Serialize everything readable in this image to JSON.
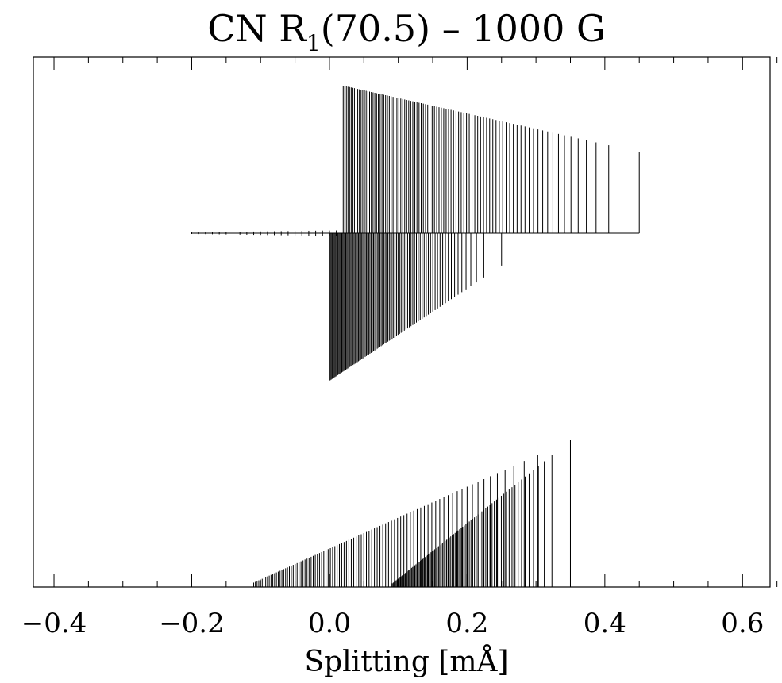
{
  "chart_data": {
    "type": "line",
    "title": {
      "main": "CN R",
      "subscript": "1",
      "rest": "(70.5)  –  1000 G"
    },
    "xlabel": "Splitting [mÅ]",
    "ylabel": "",
    "xlim": [
      -0.43,
      0.64
    ],
    "x_ticks": [
      "−0.4",
      "−0.2",
      "0.0",
      "0.2",
      "0.4",
      "0.6"
    ],
    "x_tick_values": [
      -0.4,
      -0.2,
      0.0,
      0.2,
      0.4,
      0.6
    ],
    "grid": false,
    "series": [
      {
        "component": "sigma",
        "x_start": -0.2,
        "x_end": 0.45,
        "upper_x_start": 0.02,
        "upper_x_end": 0.45,
        "lower_x_start": 0.0,
        "lower_x_end": 0.25,
        "peak_strength": 1.0,
        "count": 95
      },
      {
        "component": "pi",
        "x_start": -0.11,
        "x_end": 0.35,
        "peak_strength": 1.0,
        "count": 95
      }
    ]
  }
}
